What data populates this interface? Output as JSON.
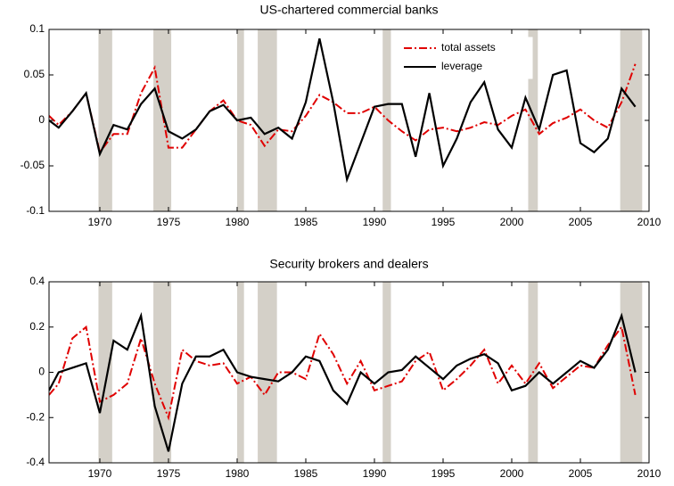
{
  "chart_data": [
    {
      "type": "line",
      "title": "US-chartered commercial banks",
      "x": [
        1966.3,
        1967,
        1968,
        1969,
        1970,
        1971,
        1972,
        1973,
        1974,
        1975,
        1976,
        1977,
        1978,
        1979,
        1980,
        1981,
        1982,
        1983,
        1984,
        1985,
        1986,
        1987,
        1988,
        1989,
        1990,
        1991,
        1992,
        1993,
        1994,
        1995,
        1996,
        1997,
        1998,
        1999,
        2000,
        2001,
        2002,
        2003,
        2004,
        2005,
        2006,
        2007,
        2008,
        2009
      ],
      "series": [
        {
          "name": "total assets",
          "color": "#e00000",
          "style": "dashdot",
          "values": [
            0.005,
            -0.005,
            0.01,
            0.03,
            -0.035,
            -0.015,
            -0.015,
            0.03,
            0.058,
            -0.03,
            -0.03,
            -0.01,
            0.01,
            0.022,
            0.0,
            -0.005,
            -0.028,
            -0.01,
            -0.012,
            0.005,
            0.028,
            0.02,
            0.008,
            0.008,
            0.015,
            0.0,
            -0.012,
            -0.022,
            -0.01,
            -0.008,
            -0.012,
            -0.008,
            -0.002,
            -0.005,
            0.005,
            0.012,
            -0.015,
            -0.003,
            0.003,
            0.012,
            0.0,
            -0.008,
            0.02,
            0.062
          ]
        },
        {
          "name": "leverage",
          "color": "#000000",
          "style": "solid",
          "values": [
            0.0,
            -0.008,
            0.01,
            0.03,
            -0.037,
            -0.005,
            -0.01,
            0.018,
            0.035,
            -0.012,
            -0.02,
            -0.01,
            0.01,
            0.017,
            0.0,
            0.003,
            -0.015,
            -0.008,
            -0.02,
            0.02,
            0.09,
            0.02,
            -0.065,
            -0.025,
            0.015,
            0.018,
            0.018,
            -0.04,
            0.03,
            -0.05,
            -0.02,
            0.02,
            0.042,
            -0.01,
            -0.03,
            0.025,
            -0.01,
            0.05,
            0.055,
            -0.025,
            -0.035,
            -0.02,
            0.035,
            0.015
          ]
        }
      ],
      "xlim": [
        1966.3,
        2010
      ],
      "xticks": [
        1970,
        1975,
        1980,
        1985,
        1990,
        1995,
        2000,
        2005,
        2010
      ],
      "ylim": [
        -0.1,
        0.1
      ],
      "yticks": [
        -0.1,
        -0.05,
        0,
        0.05,
        0.1
      ],
      "shading": [
        [
          1969.9,
          1970.9
        ],
        [
          1973.9,
          1975.2
        ],
        [
          1980.0,
          1980.5
        ],
        [
          1981.5,
          1982.9
        ],
        [
          1990.6,
          1991.2
        ],
        [
          2001.2,
          2001.9
        ],
        [
          2007.9,
          2009.5
        ]
      ],
      "shading_color": "#d4d0c8",
      "legend": "upper right",
      "grid": false
    },
    {
      "type": "line",
      "title": "Security brokers and dealers",
      "x": [
        1966.3,
        1967,
        1968,
        1969,
        1970,
        1971,
        1972,
        1973,
        1974,
        1975,
        1976,
        1977,
        1978,
        1979,
        1980,
        1981,
        1982,
        1983,
        1984,
        1985,
        1986,
        1987,
        1988,
        1989,
        1990,
        1991,
        1992,
        1993,
        1994,
        1995,
        1996,
        1997,
        1998,
        1999,
        2000,
        2001,
        2002,
        2003,
        2004,
        2005,
        2006,
        2007,
        2008,
        2009
      ],
      "series": [
        {
          "name": "total assets",
          "color": "#e00000",
          "style": "dashdot",
          "values": [
            -0.1,
            -0.05,
            0.15,
            0.2,
            -0.13,
            -0.1,
            -0.05,
            0.15,
            -0.05,
            -0.2,
            0.1,
            0.05,
            0.03,
            0.04,
            -0.05,
            -0.02,
            -0.1,
            0.0,
            0.0,
            -0.03,
            0.17,
            0.08,
            -0.05,
            0.05,
            -0.08,
            -0.06,
            -0.04,
            0.05,
            0.09,
            -0.08,
            -0.03,
            0.03,
            0.1,
            -0.05,
            0.03,
            -0.05,
            0.04,
            -0.07,
            -0.02,
            0.03,
            0.02,
            0.12,
            0.2,
            -0.1
          ]
        },
        {
          "name": "leverage",
          "color": "#000000",
          "style": "solid",
          "values": [
            -0.08,
            0.0,
            0.02,
            0.04,
            -0.18,
            0.14,
            0.1,
            0.25,
            -0.15,
            -0.35,
            -0.05,
            0.07,
            0.07,
            0.1,
            0.0,
            -0.02,
            -0.03,
            -0.04,
            0.0,
            0.07,
            0.05,
            -0.08,
            -0.14,
            0.0,
            -0.05,
            0.0,
            0.01,
            0.07,
            0.02,
            -0.03,
            0.03,
            0.06,
            0.08,
            0.04,
            -0.08,
            -0.06,
            0.0,
            -0.05,
            0.0,
            0.05,
            0.02,
            0.1,
            0.25,
            0.0
          ]
        }
      ],
      "xlim": [
        1966.3,
        2010
      ],
      "xticks": [
        1970,
        1975,
        1980,
        1985,
        1990,
        1995,
        2000,
        2005,
        2010
      ],
      "ylim": [
        -0.4,
        0.4
      ],
      "yticks": [
        -0.4,
        -0.2,
        0,
        0.2,
        0.4
      ],
      "shading": [
        [
          1969.9,
          1970.9
        ],
        [
          1973.9,
          1975.2
        ],
        [
          1980.0,
          1980.5
        ],
        [
          1981.5,
          1982.9
        ],
        [
          1990.6,
          1991.2
        ],
        [
          2001.2,
          2001.9
        ],
        [
          2007.9,
          2009.5
        ]
      ],
      "shading_color": "#d4d0c8",
      "grid": false
    }
  ]
}
